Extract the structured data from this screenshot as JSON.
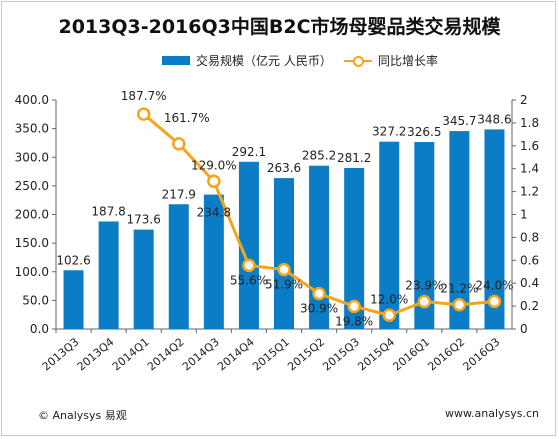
{
  "chart_data": {
    "type": "bar",
    "title": "2013Q3-2016Q3中国B2C市场母婴品类交易规模",
    "categories": [
      "2013Q3",
      "2013Q4",
      "2014Q1",
      "2014Q2",
      "2014Q3",
      "2014Q4",
      "2015Q1",
      "2015Q2",
      "2015Q3",
      "2015Q4",
      "2016Q1",
      "2016Q2",
      "2016Q3"
    ],
    "series": [
      {
        "name": "交易规模（亿元 人民币）",
        "type": "bar",
        "axis": "left",
        "color": "#0a7dc6",
        "values": [
          102.6,
          187.8,
          173.6,
          217.9,
          234.8,
          292.1,
          263.6,
          285.2,
          281.2,
          327.2,
          326.5,
          345.7,
          348.6
        ],
        "labels": [
          "102.6",
          "187.8",
          "173.6",
          "217.9",
          "234.8",
          "292.1",
          "263.6",
          "285.2",
          "281.2",
          "327.2",
          "326.5",
          "345.7",
          "348.6"
        ]
      },
      {
        "name": "同比增长率",
        "type": "line",
        "axis": "right",
        "color": "#f5a51d",
        "values": [
          null,
          null,
          1.877,
          1.617,
          1.29,
          0.556,
          0.519,
          0.309,
          0.198,
          0.12,
          0.239,
          0.212,
          0.24
        ],
        "labels": [
          "",
          "",
          "187.7%",
          "161.7%",
          "129.0%",
          "55.6%",
          "51.9%",
          "30.9%",
          "19.8%",
          "12.0%",
          "23.9%",
          "21.2%",
          "24.0%"
        ]
      }
    ],
    "y_left": {
      "min": 0,
      "max": 400,
      "ticks": [
        "0.0",
        "50.0",
        "100.0",
        "150.0",
        "200.0",
        "250.0",
        "300.0",
        "350.0",
        "400.0"
      ]
    },
    "y_right": {
      "min": 0,
      "max": 2,
      "ticks": [
        "0",
        "0.2",
        "0.4",
        "0.6",
        "0.8",
        "1",
        "1.2",
        "1.4",
        "1.6",
        "1.8",
        "2"
      ]
    },
    "legend_position": "top",
    "grid": false
  },
  "footer": {
    "source": "© Analysys 易观",
    "website": "www.analysys.cn"
  }
}
